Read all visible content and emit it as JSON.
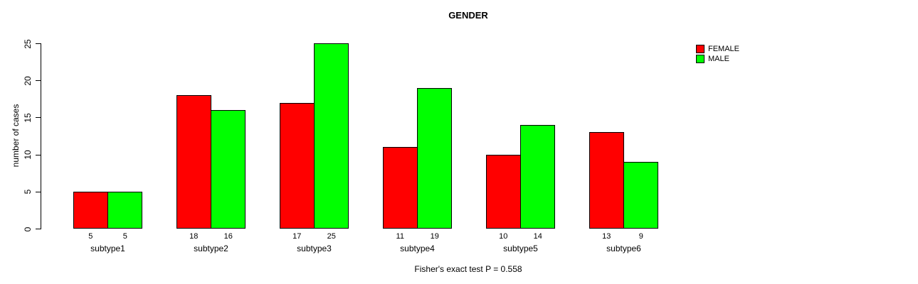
{
  "chart_data": {
    "type": "bar",
    "title": "GENDER",
    "ylabel": "number of cases",
    "xlabel": "",
    "footnote": "Fisher's exact test P = 0.558",
    "categories": [
      "subtype1",
      "subtype2",
      "subtype3",
      "subtype4",
      "subtype5",
      "subtype6"
    ],
    "series": [
      {
        "name": "FEMALE",
        "color": "#ff0000",
        "values": [
          5,
          18,
          17,
          11,
          10,
          13
        ]
      },
      {
        "name": "MALE",
        "color": "#00ff00",
        "values": [
          5,
          16,
          25,
          19,
          14,
          9
        ]
      }
    ],
    "bar_value_labels": {
      "FEMALE": [
        "5",
        "18",
        "17",
        "11",
        "10",
        "13"
      ],
      "MALE": [
        "5",
        "16",
        "25",
        "19",
        "14",
        "9"
      ]
    },
    "ylim": [
      0,
      25
    ],
    "yticks": [
      "0",
      "5",
      "10",
      "15",
      "20",
      "25"
    ],
    "grid": false,
    "legend_position": "top-right",
    "plot_background": "#ffffff",
    "axis_color": "#000000"
  }
}
